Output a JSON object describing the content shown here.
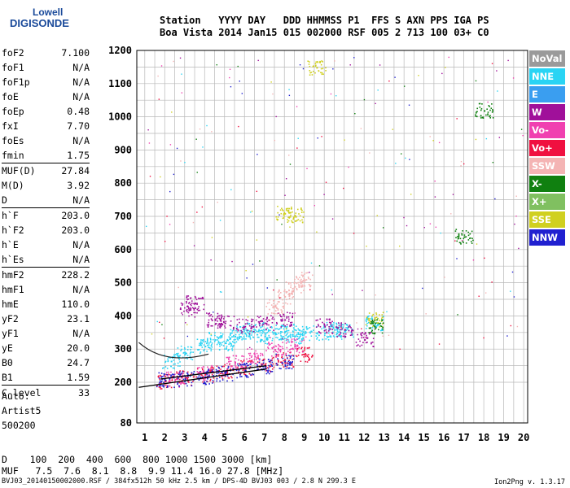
{
  "logo": {
    "line1": "Lowell",
    "line2": "DIGISONDE"
  },
  "header": {
    "row1": "Station   YYYY DAY   DDD HHMMSS P1  FFS S AXN PPS IGA PS",
    "row2": "Boa Vista 2014 Jan15 015 002000 RSF 005 2 713 100 03+ C0"
  },
  "params": {
    "group1": [
      {
        "k": "foF2",
        "v": "7.100"
      },
      {
        "k": "foF1",
        "v": "N/A"
      },
      {
        "k": "foF1p",
        "v": "N/A"
      },
      {
        "k": "foE",
        "v": "N/A"
      },
      {
        "k": "foEp",
        "v": "0.48"
      },
      {
        "k": "fxI",
        "v": "7.70"
      },
      {
        "k": "foEs",
        "v": "N/A"
      },
      {
        "k": "fmin",
        "v": "1.75"
      }
    ],
    "group2": [
      {
        "k": "MUF(D)",
        "v": "27.84"
      },
      {
        "k": "M(D)",
        "v": "3.92"
      },
      {
        "k": "D",
        "v": "N/A"
      }
    ],
    "group3": [
      {
        "k": "h`F",
        "v": "203.0"
      },
      {
        "k": "h`F2",
        "v": "203.0"
      },
      {
        "k": "h`E",
        "v": "N/A"
      },
      {
        "k": "h`Es",
        "v": "N/A"
      }
    ],
    "group4": [
      {
        "k": "hmF2",
        "v": "228.2"
      },
      {
        "k": "hmF1",
        "v": "N/A"
      },
      {
        "k": "hmE",
        "v": "110.0"
      },
      {
        "k": "yF2",
        "v": "23.1"
      },
      {
        "k": "yF1",
        "v": "N/A"
      },
      {
        "k": "yE",
        "v": "20.0"
      },
      {
        "k": "B0",
        "v": "24.7"
      },
      {
        "k": "B1",
        "v": "1.59"
      }
    ],
    "group5": [
      {
        "k": "C-level",
        "v": "33"
      }
    ]
  },
  "auto": {
    "line1": "Auto:",
    "line2": "Artist5",
    "line3": "500200"
  },
  "legend": [
    {
      "label": "NoVal",
      "color": "#9a9a9a"
    },
    {
      "label": "NNE",
      "color": "#2ad4f4"
    },
    {
      "label": "E",
      "color": "#3a9ef0"
    },
    {
      "label": "W",
      "color": "#a0109a"
    },
    {
      "label": "Vo-",
      "color": "#f040b0"
    },
    {
      "label": "Vo+",
      "color": "#f01040"
    },
    {
      "label": "SSW",
      "color": "#f4b4b4"
    },
    {
      "label": "X-",
      "color": "#108010"
    },
    {
      "label": "X+",
      "color": "#80c060"
    },
    {
      "label": "SSE",
      "color": "#d0d020"
    },
    {
      "label": "NNW",
      "color": "#2020d0"
    }
  ],
  "dmuf": {
    "row1": "D    100  200  400  600  800 1000 1500 3000 [km]",
    "row2": "MUF   7.5  7.6  8.1  8.8  9.9 11.4 16.0 27.8 [MHz]"
  },
  "footer": "BVJ03_20140150002000.RSF / 384fx512h 50 kHz 2.5 km / DPS-4D BVJ03 003 / 2.8 N 299.3 E",
  "version": "Ion2Png v. 1.3.17",
  "chart_data": {
    "type": "scatter",
    "xlim": [
      1,
      20
    ],
    "ylim": [
      80,
      1200
    ],
    "xticks": [
      "1",
      "2",
      "3",
      "4",
      "5",
      "6",
      "7",
      "8",
      "9",
      "10",
      "11",
      "12",
      "13",
      "14",
      "15",
      "16",
      "17",
      "18",
      "19",
      "20"
    ],
    "yticks": [
      "80",
      "200",
      "300",
      "400",
      "500",
      "600",
      "700",
      "800",
      "900",
      "1000",
      "1100",
      "1200"
    ],
    "grid": true,
    "legend_position": "right",
    "series": [
      {
        "color": "#2ad4f4",
        "points": [
          [
            2.3,
            265
          ],
          [
            3,
            290
          ],
          [
            4,
            310
          ],
          [
            4.5,
            330
          ],
          [
            5,
            320
          ],
          [
            5.5,
            340
          ],
          [
            6,
            350
          ],
          [
            6.5,
            360
          ],
          [
            7,
            340
          ],
          [
            7.5,
            350
          ],
          [
            8,
            355
          ],
          [
            8.5,
            340
          ],
          [
            9,
            350
          ],
          [
            10,
            350
          ],
          [
            10.5,
            360
          ],
          [
            11,
            355
          ],
          [
            12.5,
            380
          ]
        ]
      },
      {
        "color": "#a0109a",
        "points": [
          [
            3.2,
            420
          ],
          [
            3.5,
            440
          ],
          [
            4.5,
            390
          ],
          [
            5,
            380
          ],
          [
            6,
            370
          ],
          [
            7,
            380
          ],
          [
            8,
            390
          ],
          [
            10,
            370
          ],
          [
            11,
            360
          ],
          [
            12,
            330
          ]
        ]
      },
      {
        "color": "#f01040",
        "points": [
          [
            2,
            205
          ],
          [
            3,
            215
          ],
          [
            4,
            225
          ],
          [
            5,
            235
          ],
          [
            6,
            245
          ],
          [
            7,
            255
          ],
          [
            8,
            270
          ],
          [
            9,
            285
          ]
        ]
      },
      {
        "color": "#f040b0",
        "points": [
          [
            2.5,
            210
          ],
          [
            4,
            230
          ],
          [
            5.5,
            260
          ],
          [
            6.5,
            280
          ],
          [
            7.5,
            300
          ],
          [
            8.5,
            310
          ]
        ]
      },
      {
        "color": "#2020d0",
        "points": [
          [
            2,
            208
          ],
          [
            3,
            212
          ],
          [
            4,
            218
          ],
          [
            5,
            228
          ],
          [
            6,
            238
          ],
          [
            7,
            250
          ],
          [
            8,
            265
          ]
        ]
      },
      {
        "color": "#f4b4b4",
        "points": [
          [
            7.5,
            430
          ],
          [
            8,
            460
          ],
          [
            8.5,
            490
          ],
          [
            9,
            510
          ]
        ]
      },
      {
        "color": "#d0d020",
        "points": [
          [
            8,
            710
          ],
          [
            8.5,
            705
          ],
          [
            9.6,
            1150
          ],
          [
            12.5,
            390
          ]
        ]
      },
      {
        "color": "#108010",
        "points": [
          [
            12.5,
            370
          ],
          [
            17,
            640
          ],
          [
            18,
            1020
          ]
        ]
      }
    ]
  }
}
